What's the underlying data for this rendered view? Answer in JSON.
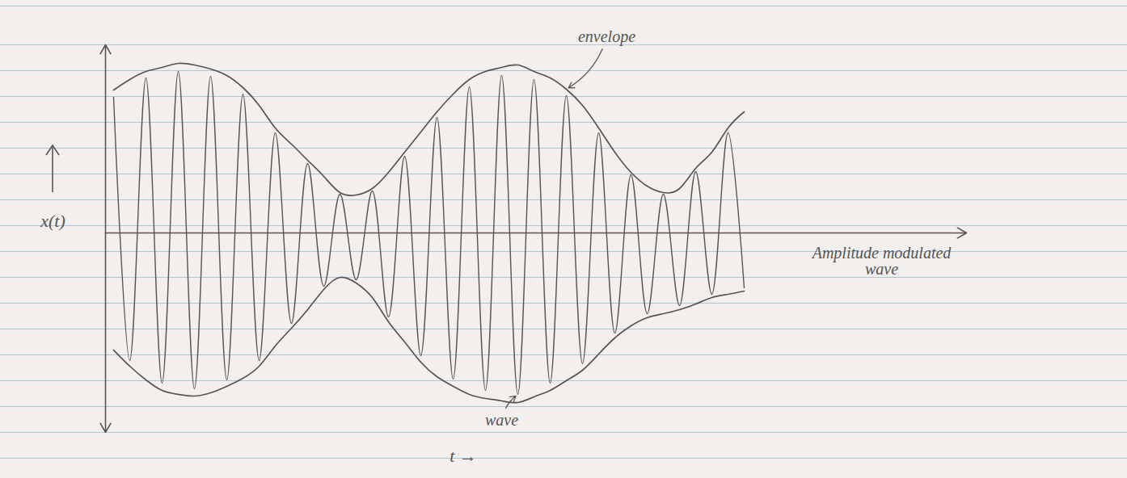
{
  "chart_data": {
    "type": "line",
    "xlabel": "t →",
    "ylabel": "x(t)",
    "xlim": [
      0,
      1065
    ],
    "ylim": [
      -247,
      233
    ],
    "tick_labels": false,
    "grid": false,
    "x": [
      10,
      30,
      50,
      70,
      90,
      110,
      130,
      150,
      170,
      190,
      210,
      230,
      250,
      270,
      290,
      310,
      330,
      350,
      370,
      390,
      410,
      430,
      450,
      470,
      490,
      510,
      530,
      550,
      570,
      590,
      610,
      630,
      650,
      670,
      690,
      710,
      730,
      750,
      770,
      790
    ],
    "series": [
      {
        "name": "wave",
        "color": "#555555",
        "line_style": "solid",
        "values": [
          168,
          -158,
          192,
          -186,
          200,
          -193,
          194,
          -182,
          172,
          -158,
          124,
          -112,
          86,
          -66,
          48,
          -58,
          52,
          -104,
          95,
          -152,
          143,
          -181,
          181,
          -195,
          195,
          -200,
          190,
          -186,
          170,
          -162,
          124,
          -124,
          72,
          -100,
          48,
          -90,
          76,
          -76,
          124,
          -68
        ]
      },
      {
        "name": "envelope",
        "color": "#555555",
        "line_style": "solid",
        "values": [
          177,
          190,
          200,
          205,
          210,
          208,
          203,
          195,
          180,
          158,
          130,
          110,
          90,
          70,
          50,
          47,
          55,
          75,
          100,
          125,
          150,
          172,
          190,
          200,
          205,
          208,
          200,
          192,
          178,
          158,
          130,
          100,
          75,
          58,
          50,
          55,
          80,
          100,
          130,
          150
        ]
      },
      {
        "name": "envelope",
        "color": "#555555",
        "line_style": "solid",
        "values": [
          -145,
          -165,
          -182,
          -195,
          -200,
          -202,
          -198,
          -190,
          -180,
          -165,
          -140,
          -118,
          -95,
          -70,
          -55,
          -62,
          -80,
          -110,
          -135,
          -160,
          -178,
          -190,
          -200,
          -205,
          -208,
          -210,
          -203,
          -195,
          -183,
          -170,
          -150,
          -130,
          -115,
          -105,
          -100,
          -95,
          -88,
          -80,
          -76,
          -72
        ]
      }
    ],
    "annotations": [
      {
        "series": "envelope",
        "x": 620,
        "y": 243
      },
      {
        "series": "wave",
        "x": 490,
        "y": -232
      },
      {
        "text": "Amplitude modulated wave",
        "x": 960,
        "y": -35
      }
    ]
  }
}
